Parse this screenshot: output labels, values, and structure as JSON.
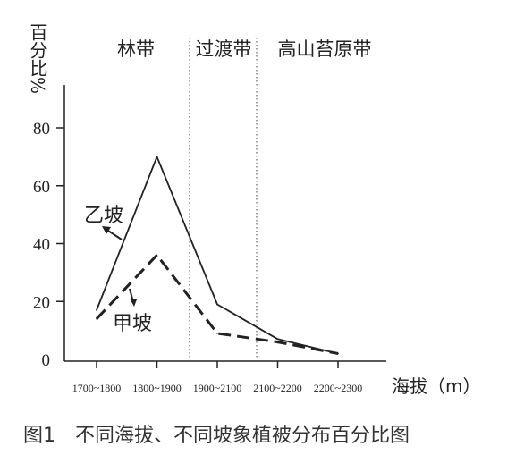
{
  "chart_data": {
    "type": "line",
    "ylabel": "百分比%",
    "xlabel": "海拔（m）",
    "ylim": [
      0,
      80
    ],
    "yticks": [
      0,
      20,
      40,
      60,
      80
    ],
    "categories": [
      "1700~1800",
      "1800~1900",
      "1900~2100",
      "2100~2200",
      "2200~2300"
    ],
    "zones": [
      "林带",
      "过渡带",
      "高山苔原带"
    ],
    "series": [
      {
        "name": "乙坡",
        "style": "solid",
        "values": [
          17,
          70,
          19,
          7,
          2
        ]
      },
      {
        "name": "甲坡",
        "style": "dashed",
        "values": [
          14,
          36,
          9,
          6,
          2
        ]
      }
    ]
  },
  "caption": "图1　不同海拔、不同坡象植被分布百分比图",
  "colors": {
    "line": "#222222",
    "text": "#333333"
  }
}
